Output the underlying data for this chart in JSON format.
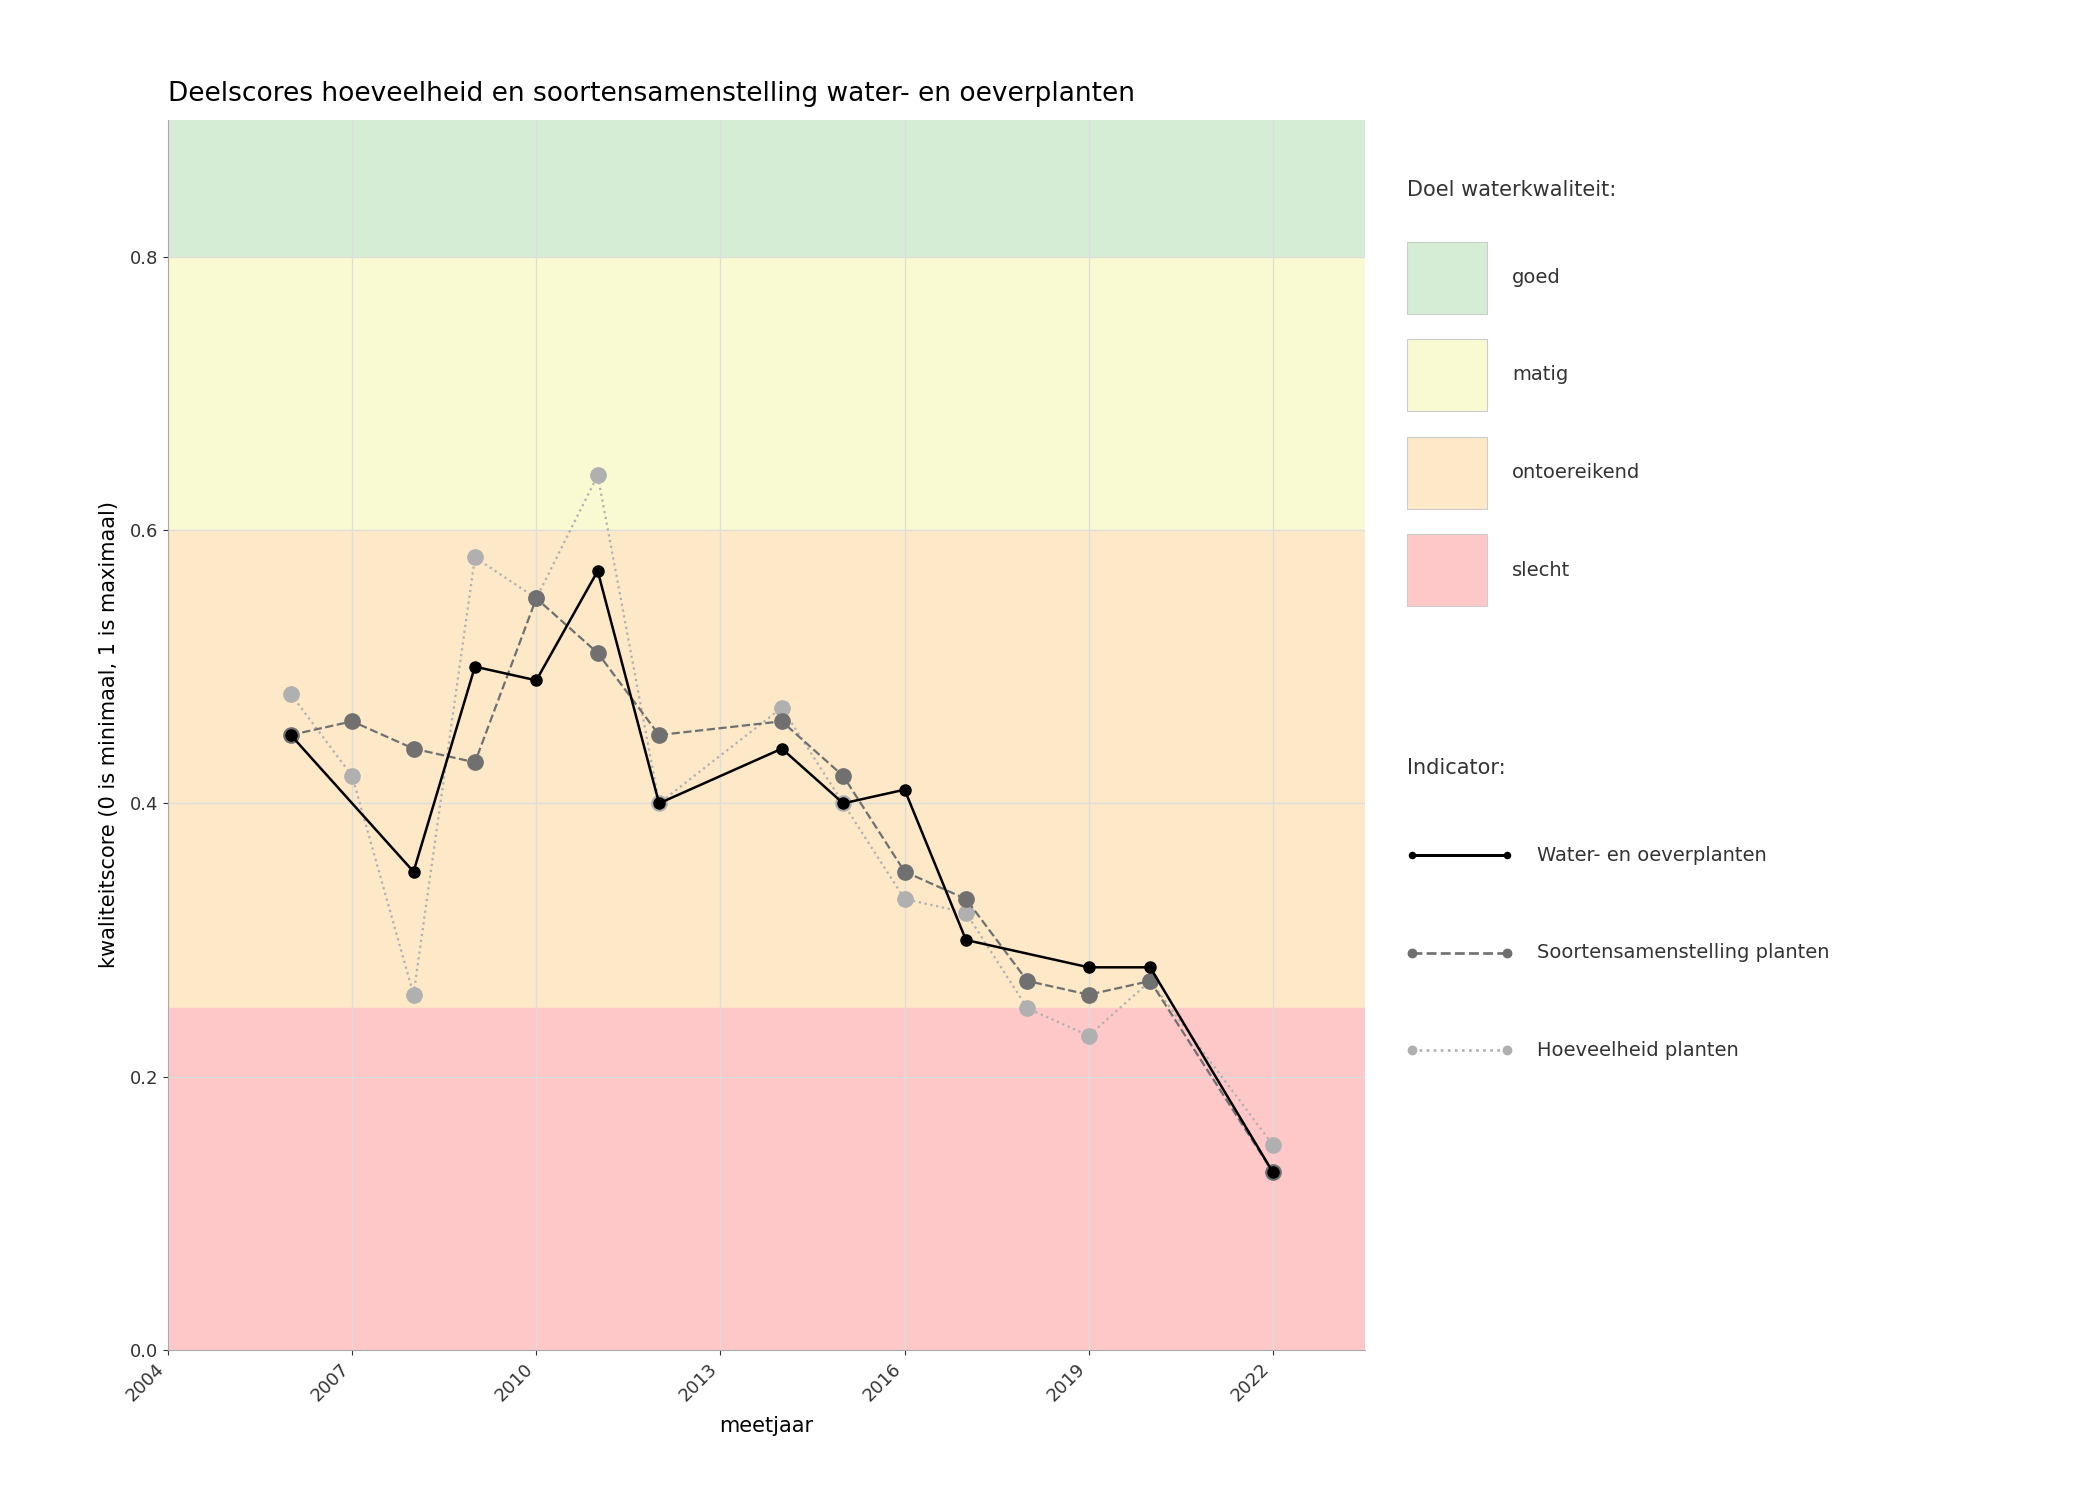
{
  "title": "Deelscores hoeveelheid en soortensamenstelling water- en oeverplanten",
  "xlabel": "meetjaar",
  "ylabel": "kwaliteitscore (0 is minimaal, 1 is maximaal)",
  "xlim": [
    2004,
    2023.5
  ],
  "ylim": [
    0.0,
    0.9
  ],
  "xticks": [
    2004,
    2007,
    2010,
    2013,
    2016,
    2019,
    2022
  ],
  "yticks": [
    0.0,
    0.2,
    0.4,
    0.6,
    0.8
  ],
  "zones": [
    {
      "name": "goed",
      "ymin": 0.8,
      "ymax": 0.9,
      "color": "#d5ecd5"
    },
    {
      "name": "matig",
      "ymin": 0.6,
      "ymax": 0.8,
      "color": "#fafad2"
    },
    {
      "name": "ontoereikend",
      "ymin": 0.25,
      "ymax": 0.6,
      "color": "#fde8c8"
    },
    {
      "name": "slecht",
      "ymin": 0.0,
      "ymax": 0.25,
      "color": "#ffc8c8"
    }
  ],
  "zone_legend_colors": [
    "#d5ecd5",
    "#fafad2",
    "#fde8c8",
    "#ffc8c8"
  ],
  "zone_legend_labels": [
    "goed",
    "matig",
    "ontoereikend",
    "slecht"
  ],
  "water_oeverplanten": {
    "years": [
      2006,
      2008,
      2009,
      2010,
      2011,
      2012,
      2014,
      2015,
      2016,
      2017,
      2019,
      2020,
      2022
    ],
    "values": [
      0.45,
      0.35,
      0.5,
      0.49,
      0.57,
      0.4,
      0.44,
      0.4,
      0.41,
      0.3,
      0.28,
      0.28,
      0.13
    ],
    "color": "#000000",
    "linestyle": "solid",
    "linewidth": 1.8,
    "marker": "o",
    "markersize": 8,
    "label": "Water- en oeverplanten",
    "zorder": 5
  },
  "soortensamenstelling": {
    "years": [
      2006,
      2007,
      2008,
      2009,
      2010,
      2011,
      2012,
      2014,
      2015,
      2016,
      2017,
      2018,
      2019,
      2020,
      2022
    ],
    "values": [
      0.45,
      0.46,
      0.44,
      0.43,
      0.55,
      0.51,
      0.45,
      0.46,
      0.42,
      0.35,
      0.33,
      0.27,
      0.26,
      0.27,
      0.13
    ],
    "color": "#707070",
    "linestyle": "dashed",
    "linewidth": 1.6,
    "marker": "o",
    "markersize": 11,
    "label": "Soortensamenstelling planten",
    "zorder": 4
  },
  "hoeveelheid": {
    "years": [
      2006,
      2007,
      2008,
      2009,
      2010,
      2011,
      2012,
      2014,
      2015,
      2016,
      2017,
      2018,
      2019,
      2020,
      2022
    ],
    "values": [
      0.48,
      0.42,
      0.26,
      0.58,
      0.55,
      0.64,
      0.4,
      0.47,
      0.4,
      0.33,
      0.32,
      0.25,
      0.23,
      0.27,
      0.15
    ],
    "color": "#b0b0b0",
    "linestyle": "dotted",
    "linewidth": 1.6,
    "marker": "o",
    "markersize": 11,
    "label": "Hoeveelheid planten",
    "zorder": 3
  },
  "title_fontsize": 19,
  "axis_label_fontsize": 15,
  "tick_fontsize": 13,
  "legend_fontsize": 14,
  "legend_header_fontsize": 15
}
